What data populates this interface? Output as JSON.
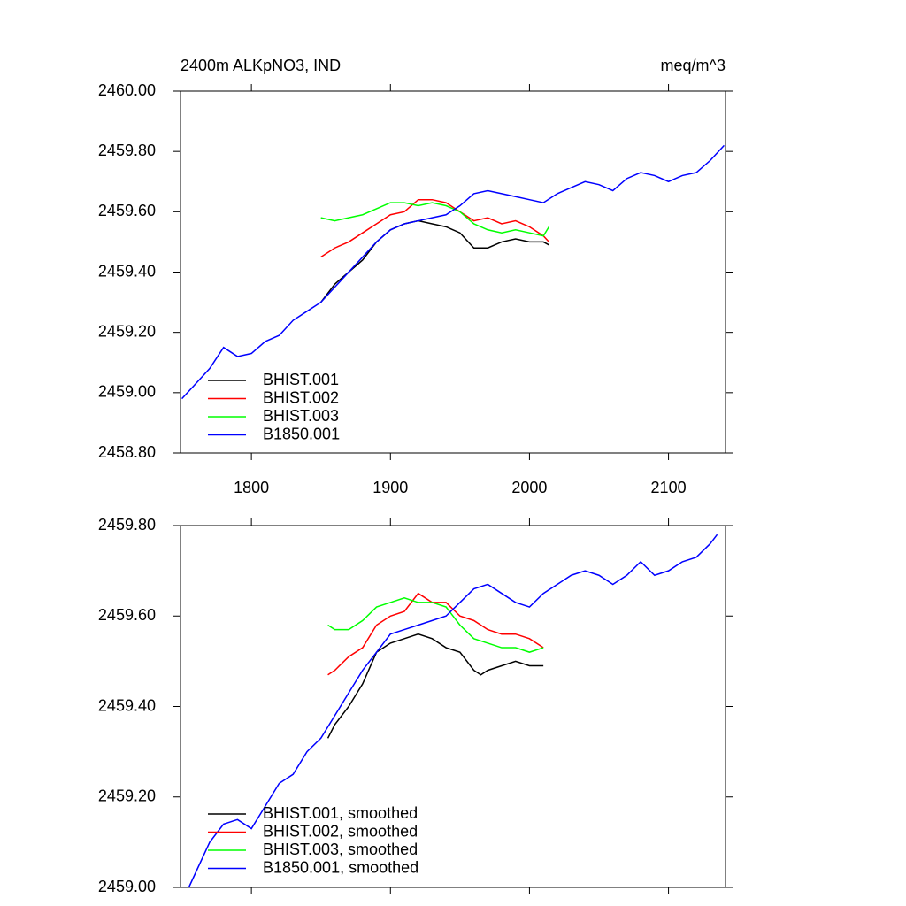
{
  "chart_data": [
    {
      "type": "line",
      "title": "2400m ALKpNO3, IND",
      "unit_label": "meq/m^3",
      "xlim": [
        1749,
        2141
      ],
      "xticks": [
        1800,
        1900,
        2000,
        2100
      ],
      "xtick_labels": true,
      "ylim": [
        2458.8,
        2460
      ],
      "yticks": [
        {
          "value": 2458.8,
          "label": "2458.80"
        },
        {
          "value": 2459,
          "label": "2459.00"
        },
        {
          "value": 2459.2,
          "label": "2459.20"
        },
        {
          "value": 2459.4,
          "label": "2459.40"
        },
        {
          "value": 2459.6,
          "label": "2459.60"
        },
        {
          "value": 2459.8,
          "label": "2459.80"
        },
        {
          "value": 2460,
          "label": "2460.00"
        }
      ],
      "legend": "lower left",
      "series": [
        {
          "name": "BHIST.001",
          "color": "#000000",
          "x": [
            1850,
            1860,
            1870,
            1880,
            1890,
            1900,
            1910,
            1920,
            1930,
            1940,
            1950,
            1960,
            1970,
            1980,
            1990,
            2000,
            2010,
            2014
          ],
          "values": [
            2459.3,
            2459.36,
            2459.4,
            2459.44,
            2459.5,
            2459.54,
            2459.56,
            2459.57,
            2459.56,
            2459.55,
            2459.53,
            2459.48,
            2459.48,
            2459.5,
            2459.51,
            2459.5,
            2459.5,
            2459.49
          ]
        },
        {
          "name": "BHIST.002",
          "color": "#ff0000",
          "x": [
            1850,
            1860,
            1870,
            1880,
            1890,
            1900,
            1910,
            1920,
            1930,
            1940,
            1950,
            1960,
            1970,
            1980,
            1990,
            2000,
            2010,
            2014
          ],
          "values": [
            2459.45,
            2459.48,
            2459.5,
            2459.53,
            2459.56,
            2459.59,
            2459.6,
            2459.64,
            2459.64,
            2459.63,
            2459.6,
            2459.57,
            2459.58,
            2459.56,
            2459.57,
            2459.55,
            2459.52,
            2459.5
          ]
        },
        {
          "name": "BHIST.003",
          "color": "#00ff00",
          "x": [
            1850,
            1860,
            1870,
            1880,
            1890,
            1900,
            1910,
            1920,
            1930,
            1940,
            1950,
            1960,
            1970,
            1980,
            1990,
            2000,
            2010,
            2014
          ],
          "values": [
            2459.58,
            2459.57,
            2459.58,
            2459.59,
            2459.61,
            2459.63,
            2459.63,
            2459.62,
            2459.63,
            2459.62,
            2459.6,
            2459.56,
            2459.54,
            2459.53,
            2459.54,
            2459.53,
            2459.52,
            2459.55
          ]
        },
        {
          "name": "B1850.001",
          "color": "#0000ff",
          "x": [
            1750,
            1760,
            1770,
            1780,
            1790,
            1800,
            1810,
            1820,
            1830,
            1840,
            1850,
            1860,
            1870,
            1880,
            1890,
            1900,
            1910,
            1920,
            1930,
            1940,
            1950,
            1960,
            1970,
            1980,
            1990,
            2000,
            2010,
            2020,
            2030,
            2040,
            2050,
            2060,
            2070,
            2080,
            2090,
            2100,
            2110,
            2120,
            2130,
            2140
          ],
          "values": [
            2458.98,
            2459.03,
            2459.08,
            2459.15,
            2459.12,
            2459.13,
            2459.17,
            2459.19,
            2459.24,
            2459.27,
            2459.3,
            2459.35,
            2459.4,
            2459.45,
            2459.5,
            2459.54,
            2459.56,
            2459.57,
            2459.58,
            2459.59,
            2459.62,
            2459.66,
            2459.67,
            2459.66,
            2459.65,
            2459.64,
            2459.63,
            2459.66,
            2459.68,
            2459.7,
            2459.69,
            2459.67,
            2459.71,
            2459.73,
            2459.72,
            2459.7,
            2459.72,
            2459.73,
            2459.77,
            2459.82
          ]
        }
      ]
    },
    {
      "type": "line",
      "xlim": [
        1749,
        2141
      ],
      "xticks": [
        1800,
        1900,
        2000,
        2100
      ],
      "xtick_labels": false,
      "ylim": [
        2459,
        2459.8
      ],
      "yticks": [
        {
          "value": 2459,
          "label": "2459.00"
        },
        {
          "value": 2459.2,
          "label": "2459.20"
        },
        {
          "value": 2459.4,
          "label": "2459.40"
        },
        {
          "value": 2459.6,
          "label": "2459.60"
        },
        {
          "value": 2459.8,
          "label": "2459.80"
        }
      ],
      "legend": "lower left",
      "series": [
        {
          "name": "BHIST.001, smoothed",
          "color": "#000000",
          "x": [
            1855,
            1860,
            1870,
            1880,
            1890,
            1900,
            1910,
            1920,
            1930,
            1940,
            1950,
            1960,
            1965,
            1970,
            1980,
            1990,
            2000,
            2010
          ],
          "values": [
            2459.33,
            2459.36,
            2459.4,
            2459.45,
            2459.52,
            2459.54,
            2459.55,
            2459.56,
            2459.55,
            2459.53,
            2459.52,
            2459.48,
            2459.47,
            2459.48,
            2459.49,
            2459.5,
            2459.49,
            2459.49
          ]
        },
        {
          "name": "BHIST.002, smoothed",
          "color": "#ff0000",
          "x": [
            1855,
            1860,
            1870,
            1880,
            1890,
            1900,
            1910,
            1920,
            1930,
            1940,
            1950,
            1960,
            1970,
            1980,
            1990,
            2000,
            2010
          ],
          "values": [
            2459.47,
            2459.48,
            2459.51,
            2459.53,
            2459.58,
            2459.6,
            2459.61,
            2459.65,
            2459.63,
            2459.63,
            2459.6,
            2459.59,
            2459.57,
            2459.56,
            2459.56,
            2459.55,
            2459.53
          ]
        },
        {
          "name": "BHIST.003, smoothed",
          "color": "#00ff00",
          "x": [
            1855,
            1860,
            1870,
            1880,
            1890,
            1900,
            1910,
            1920,
            1930,
            1940,
            1950,
            1960,
            1970,
            1980,
            1990,
            2000,
            2010
          ],
          "values": [
            2459.58,
            2459.57,
            2459.57,
            2459.59,
            2459.62,
            2459.63,
            2459.64,
            2459.63,
            2459.63,
            2459.62,
            2459.58,
            2459.55,
            2459.54,
            2459.53,
            2459.53,
            2459.52,
            2459.53
          ]
        },
        {
          "name": "B1850.001, smoothed",
          "color": "#0000ff",
          "x": [
            1755,
            1770,
            1780,
            1790,
            1800,
            1810,
            1820,
            1830,
            1840,
            1850,
            1860,
            1870,
            1880,
            1890,
            1900,
            1910,
            1920,
            1930,
            1940,
            1950,
            1960,
            1970,
            1980,
            1990,
            2000,
            2010,
            2020,
            2030,
            2040,
            2050,
            2060,
            2070,
            2080,
            2090,
            2100,
            2110,
            2120,
            2130,
            2135
          ],
          "values": [
            2459.0,
            2459.1,
            2459.14,
            2459.15,
            2459.13,
            2459.18,
            2459.23,
            2459.25,
            2459.3,
            2459.33,
            2459.38,
            2459.43,
            2459.48,
            2459.52,
            2459.56,
            2459.57,
            2459.58,
            2459.59,
            2459.6,
            2459.63,
            2459.66,
            2459.67,
            2459.65,
            2459.63,
            2459.62,
            2459.65,
            2459.67,
            2459.69,
            2459.7,
            2459.69,
            2459.67,
            2459.69,
            2459.72,
            2459.69,
            2459.7,
            2459.72,
            2459.73,
            2459.76,
            2459.78
          ]
        }
      ]
    }
  ]
}
